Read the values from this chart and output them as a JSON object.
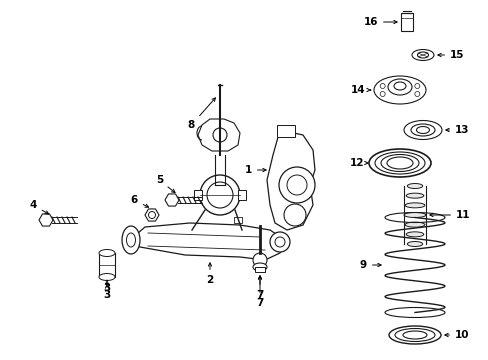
{
  "background_color": "#ffffff",
  "line_color": "#1a1a1a",
  "figsize": [
    4.89,
    3.6
  ],
  "dpi": 100,
  "label_fontsize": 7.5,
  "label_fontweight": "bold"
}
